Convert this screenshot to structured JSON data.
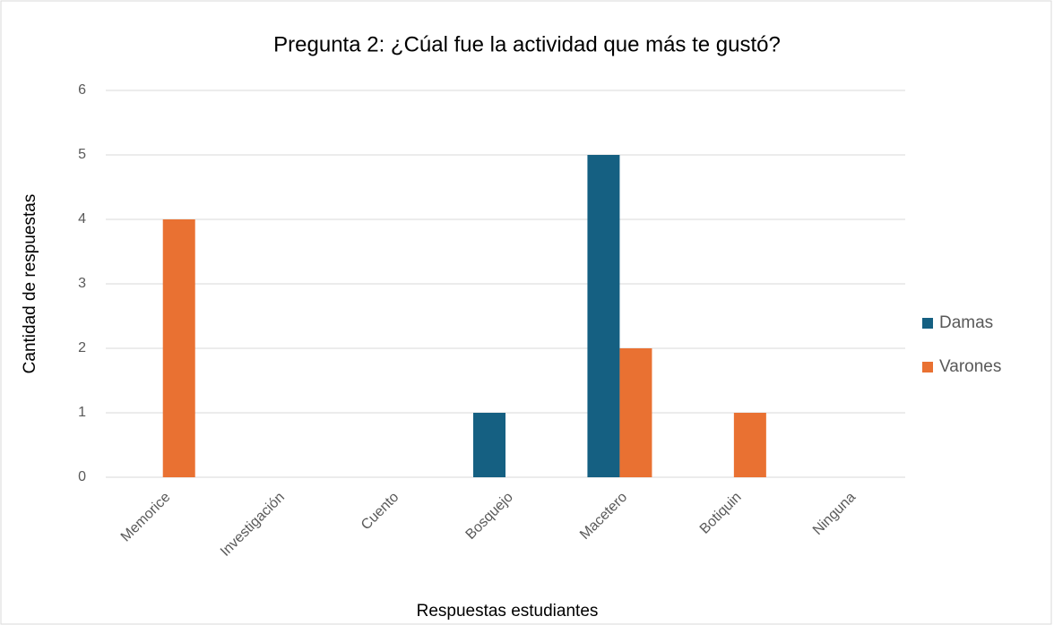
{
  "chart_data": {
    "type": "bar",
    "title": "Pregunta 2: ¿Cúal fue la actividad que más te gustó?",
    "x_label": "Respuestas estudiantes",
    "y_label": "Cantidad de respuestas",
    "categories": [
      "Memorice",
      "Investigación",
      "Cuento",
      "Bosquejo",
      "Macetero",
      "Botiquin",
      "Ninguna"
    ],
    "series": [
      {
        "name": "Damas",
        "color": "#156082",
        "values": [
          0,
          0,
          0,
          1,
          5,
          0,
          0
        ]
      },
      {
        "name": "Varones",
        "color": "#e97132",
        "values": [
          4,
          0,
          0,
          0,
          2,
          1,
          0
        ]
      }
    ],
    "ylim": [
      0,
      6
    ],
    "yticks": [
      0,
      1,
      2,
      3,
      4,
      5,
      6
    ],
    "grid": true,
    "legend": "right"
  }
}
